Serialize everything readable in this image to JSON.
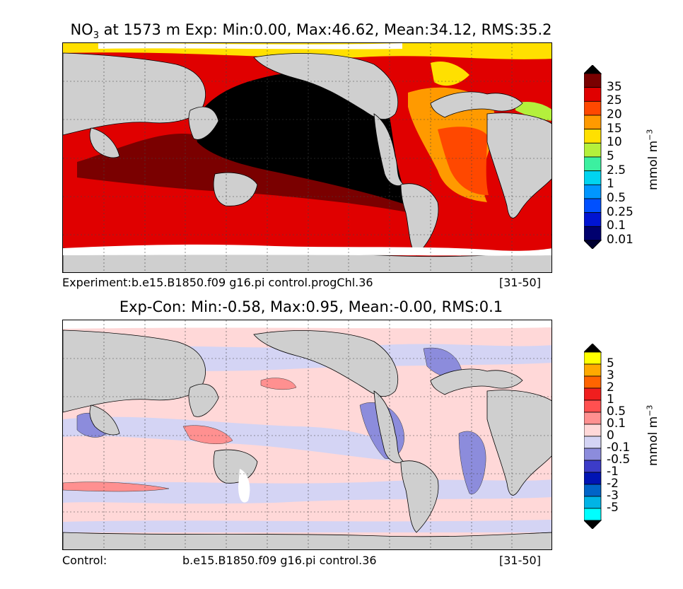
{
  "panel1": {
    "title_species": "NO",
    "title_sub": "3",
    "title_rest": " at 1573 m Exp: Min:0.00, Max:46.62, Mean:34.12, RMS:35.2",
    "footer_left": "Experiment:b.e15.B1850.f09 g16.pi control.progChl.36",
    "footer_right": "[31-50]",
    "colorbar": {
      "levels": [
        "35",
        "25",
        "20",
        "15",
        "10",
        "5",
        "2.5",
        "1",
        "0.5",
        "0.25",
        "0.1",
        "0.01"
      ],
      "colors": [
        "#7a0000",
        "#e00000",
        "#ff4800",
        "#ff9a00",
        "#ffe000",
        "#b4f03c",
        "#3cf0a0",
        "#00d4f0",
        "#0096ff",
        "#0050ff",
        "#0014d2",
        "#00006e"
      ],
      "over_color": "#000000",
      "under_color": "#000032",
      "unit_base": "mmol m",
      "unit_sup": "−3"
    }
  },
  "panel2": {
    "title": "Exp-Con: Min:-0.58, Max:0.95, Mean:-0.00, RMS:0.1",
    "footer_left": "Control:",
    "footer_mid": "b.e15.B1850.f09 g16.pi control.36",
    "footer_right": "[31-50]",
    "colorbar": {
      "levels": [
        "5",
        "3",
        "2",
        "1",
        "0.5",
        "0.1",
        "0",
        "-0.1",
        "-0.5",
        "-1",
        "-2",
        "-3",
        "-5"
      ],
      "colors": [
        "#ffff00",
        "#ffaa00",
        "#ff6400",
        "#f01e1e",
        "#ff5050",
        "#ff9090",
        "#ffd8d8",
        "#d4d4f4",
        "#8c8cdc",
        "#3c3cc8",
        "#0014b4",
        "#0064c8",
        "#00b4e6",
        "#00ffff"
      ],
      "over_color": "#000000",
      "under_color": "#000000",
      "unit_base": "mmol m",
      "unit_sup": "−3"
    }
  },
  "map_colors": {
    "land": "#cfcfcf",
    "no_data": "#ffffff",
    "pacific_core": "#000000",
    "coast": "#000000",
    "grid": "#444444"
  }
}
